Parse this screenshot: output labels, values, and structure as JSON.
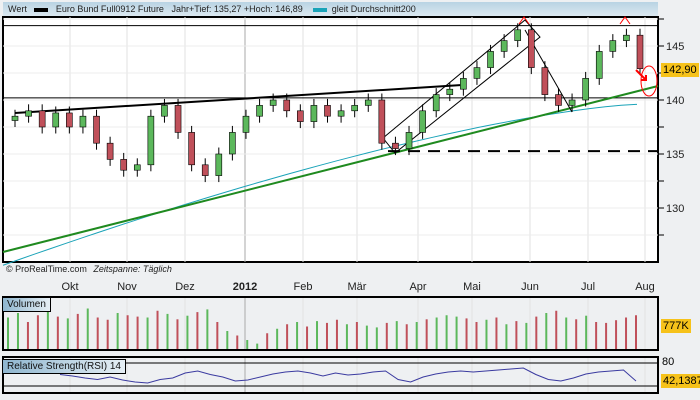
{
  "header": {
    "label": "Wert",
    "instrument": "Euro Bund Full0912 Future",
    "stats": "Jahr+Tief: 135,27 +Hoch: 146,89",
    "ma": "gleit Durchschnitt200"
  },
  "footer": {
    "source": "© ProRealTime.com",
    "period": "Zeitspanne: Täglich"
  },
  "colors": {
    "up": "#5cb85c",
    "down": "#c0505a",
    "ma": "#1aa3b8",
    "trend": "#1f8a1f",
    "rsi": "#3a3aa0",
    "tag": "#f6c21a"
  },
  "chart_data": {
    "type": "candlestick",
    "x_ticks": [
      "Okt",
      "Nov",
      "Dez",
      "2012",
      "Feb",
      "Mär",
      "Apr",
      "Mai",
      "Jun",
      "Jul",
      "Aug"
    ],
    "y_ticks": [
      130,
      135,
      140,
      145
    ],
    "ylim": [
      125,
      147.5
    ],
    "last_price": "142,90",
    "year_low": 135.27,
    "year_high": 146.89,
    "closes": [
      138.5,
      139,
      137.5,
      138.8,
      137.5,
      138.5,
      136,
      134.5,
      133.5,
      134,
      138.5,
      139.5,
      137,
      134,
      133,
      135,
      137,
      138.5,
      139.5,
      140,
      139,
      138,
      139.5,
      138.5,
      139,
      139.5,
      140,
      136,
      135.5,
      137,
      139,
      140.5,
      141,
      142,
      143,
      144.5,
      145.5,
      146.5,
      143,
      140.5,
      139.5,
      140,
      142,
      144.5,
      145.5,
      146,
      142.9
    ],
    "ma200": [
      124.7,
      139.6
    ],
    "volume": {
      "label": "Volumen",
      "last": "777K",
      "values": [
        70,
        80,
        60,
        75,
        85,
        72,
        68,
        78,
        90,
        70,
        65,
        80,
        75,
        72,
        70,
        85,
        78,
        66,
        74,
        82,
        88,
        60,
        40,
        30,
        20,
        12,
        35,
        45,
        55,
        60,
        50,
        62,
        58,
        65,
        55,
        60,
        52,
        48,
        58,
        62,
        55,
        60,
        66,
        70,
        75,
        72,
        68,
        60,
        65,
        70,
        55,
        62,
        58,
        72,
        80,
        85,
        70,
        66,
        74,
        60,
        58,
        64,
        70,
        75
      ],
      "dir": "ggrrgrgrgrrgrrgrgrgrgrgrggrgrgrgrrgrggrgrgrgggrrgrgrgrgrgrgrrrrr"
    },
    "rsi": {
      "label": "Relative Strength(RSI) 14",
      "upper": "80",
      "last": "42,1387",
      "values": [
        55,
        52,
        48,
        45,
        50,
        44,
        40,
        38,
        45,
        48,
        58,
        62,
        55,
        50,
        42,
        44,
        50,
        56,
        60,
        62,
        58,
        52,
        58,
        54,
        56,
        60,
        62,
        45,
        40,
        50,
        56,
        60,
        62,
        60,
        62,
        64,
        66,
        68,
        55,
        45,
        42,
        48,
        56,
        60,
        62,
        64,
        42
      ]
    }
  }
}
